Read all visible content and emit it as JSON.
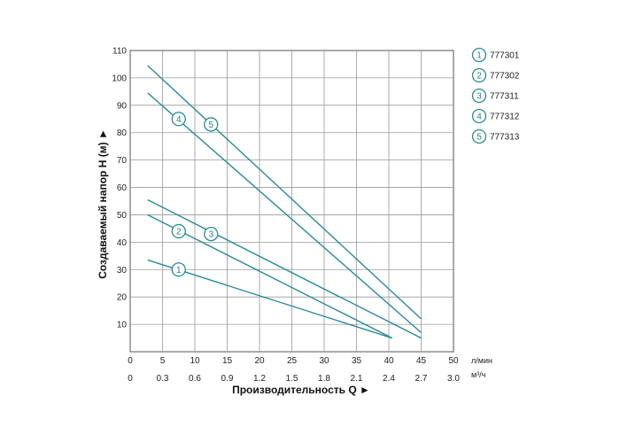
{
  "chart_data": {
    "type": "line",
    "title": "",
    "ylabel": "Создаваемый напор Н (м) ►",
    "xlabel": "Производительность Q ►",
    "x_unit": "л/мин",
    "x2_unit": "м³/ч",
    "xlim": [
      0,
      50
    ],
    "ylim": [
      0,
      110
    ],
    "x_ticks": [
      "0",
      "5",
      "10",
      "15",
      "20",
      "25",
      "30",
      "35",
      "40",
      "45",
      "50"
    ],
    "x2_ticks": [
      "0",
      "0.3",
      "0.6",
      "0.9",
      "1.2",
      "1.5",
      "1.8",
      "2.1",
      "2.4",
      "2.7",
      "3.0"
    ],
    "y_ticks": [
      "10",
      "20",
      "30",
      "40",
      "50",
      "60",
      "70",
      "80",
      "90",
      "100",
      "110"
    ],
    "grid": true,
    "legend_position": "top-right",
    "line_color": "#2a8a96",
    "series": [
      {
        "name": "777301",
        "marker": "1",
        "x": [
          2.7,
          40.5
        ],
        "y": [
          33.5,
          5
        ],
        "label_at": [
          7.5,
          30
        ]
      },
      {
        "name": "777302",
        "marker": "2",
        "x": [
          2.7,
          40.5
        ],
        "y": [
          50,
          5
        ],
        "label_at": [
          7.5,
          44
        ]
      },
      {
        "name": "777311",
        "marker": "3",
        "x": [
          2.7,
          45
        ],
        "y": [
          55.5,
          5
        ],
        "label_at": [
          12.5,
          43
        ]
      },
      {
        "name": "777312",
        "marker": "4",
        "x": [
          2.7,
          45
        ],
        "y": [
          94.5,
          7
        ],
        "label_at": [
          7.5,
          85
        ]
      },
      {
        "name": "777313",
        "marker": "5",
        "x": [
          2.7,
          45
        ],
        "y": [
          104.5,
          12
        ],
        "label_at": [
          12.5,
          83
        ]
      }
    ]
  }
}
